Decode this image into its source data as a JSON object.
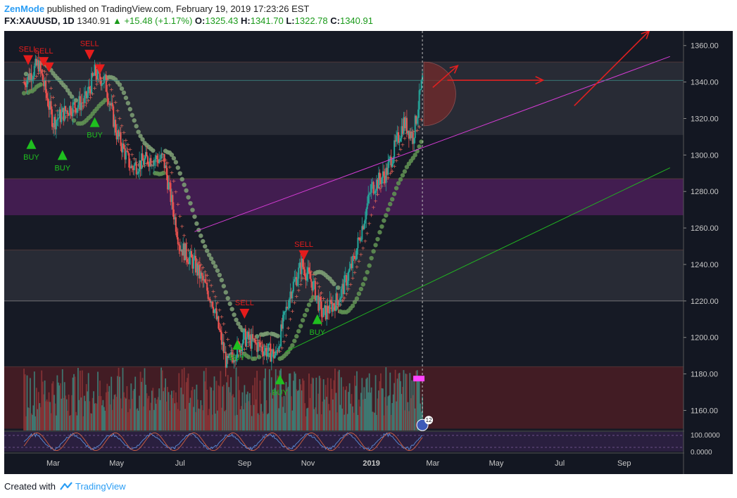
{
  "header": {
    "author": "ZenMode",
    "published_text": "published on TradingView.com, February 19, 2019 17:23:26 EST",
    "symbol": "FX:XAUUSD, 1D",
    "last": "1340.91",
    "change": "+15.48 (+1.17%)",
    "o_label": "O:",
    "o_value": "1325.43",
    "h_label": "H:",
    "h_value": "1341.70",
    "l_label": "L:",
    "l_value": "1322.78",
    "c_label": "C:",
    "c_value": "1340.91"
  },
  "footer": {
    "created_with": "Created with",
    "brand": "TradingView"
  },
  "colors": {
    "background": "#131722",
    "zone_gray": "#2c2f38",
    "zone_purple": "#4a1e58",
    "zone_red": "#4a1d24",
    "up_candle": "#26a69a",
    "down_candle": "#ef5350",
    "sma_green": "#5e8f52",
    "sma_red": "#ef6a5a",
    "trend_magenta": "#d63cd6",
    "trend_green": "#21b521",
    "buy": "#1fbf1f",
    "sell": "#e51c1c"
  },
  "chart_data": {
    "type": "candlestick",
    "symbol": "FX:XAUUSD",
    "interval": "1D",
    "xlabel": "",
    "ylabel": "",
    "x_ticks": [
      "Mar",
      "May",
      "Jul",
      "Sep",
      "Nov",
      "2019",
      "Mar",
      "May",
      "Jul",
      "Sep"
    ],
    "x_tick_dates": [
      "2018-03",
      "2018-05",
      "2018-07",
      "2018-09",
      "2018-11",
      "2019-01",
      "2019-03",
      "2019-05",
      "2019-07",
      "2019-09"
    ],
    "y_ticks": [
      "1360.00",
      "1340.00",
      "1320.00",
      "1300.00",
      "1280.00",
      "1260.00",
      "1240.00",
      "1220.00",
      "1200.00",
      "1180.00",
      "1160.00"
    ],
    "ylim": [
      1149,
      1368
    ],
    "grid": false,
    "price_path": [
      [
        "2018-02-01",
        1340
      ],
      [
        "2018-02-15",
        1350
      ],
      [
        "2018-03-01",
        1318
      ],
      [
        "2018-03-15",
        1325
      ],
      [
        "2018-04-01",
        1330
      ],
      [
        "2018-04-10",
        1345
      ],
      [
        "2018-04-20",
        1340
      ],
      [
        "2018-05-01",
        1312
      ],
      [
        "2018-05-15",
        1293
      ],
      [
        "2018-06-01",
        1298
      ],
      [
        "2018-06-15",
        1298
      ],
      [
        "2018-07-01",
        1250
      ],
      [
        "2018-07-15",
        1240
      ],
      [
        "2018-08-01",
        1220
      ],
      [
        "2018-08-15",
        1185
      ],
      [
        "2018-09-01",
        1200
      ],
      [
        "2018-09-15",
        1195
      ],
      [
        "2018-10-01",
        1190
      ],
      [
        "2018-10-15",
        1225
      ],
      [
        "2018-10-26",
        1240
      ],
      [
        "2018-11-05",
        1230
      ],
      [
        "2018-11-15",
        1212
      ],
      [
        "2018-12-01",
        1222
      ],
      [
        "2018-12-15",
        1242
      ],
      [
        "2019-01-01",
        1282
      ],
      [
        "2019-01-15",
        1290
      ],
      [
        "2019-02-01",
        1318
      ],
      [
        "2019-02-10",
        1310
      ],
      [
        "2019-02-19",
        1340.91
      ]
    ],
    "signals": [
      {
        "type": "sell",
        "label": "SELL",
        "date": "2018-02-05",
        "price": 1352
      },
      {
        "type": "sell",
        "label": "SELL",
        "date": "2018-02-20",
        "price": 1351
      },
      {
        "type": "sell",
        "label": "SELL",
        "date": "2018-04-05",
        "price": 1355
      },
      {
        "type": "sell",
        "label": "",
        "date": "2018-04-15",
        "price": 1347
      },
      {
        "type": "sell",
        "label": "",
        "date": "2018-02-25",
        "price": 1348
      },
      {
        "type": "sell",
        "label": "SELL",
        "date": "2018-09-01",
        "price": 1213
      },
      {
        "type": "sell",
        "label": "SELL",
        "date": "2018-10-28",
        "price": 1245
      },
      {
        "type": "buy",
        "label": "BUY",
        "date": "2018-02-08",
        "price": 1306
      },
      {
        "type": "buy",
        "label": "BUY",
        "date": "2018-03-10",
        "price": 1300
      },
      {
        "type": "buy",
        "label": "BUY",
        "date": "2018-04-10",
        "price": 1318
      },
      {
        "type": "buy",
        "label": "BUY",
        "date": "2018-08-25",
        "price": 1196
      },
      {
        "type": "buy",
        "label": "BUY",
        "date": "2018-10-05",
        "price": 1177
      },
      {
        "type": "buy",
        "label": "BUY",
        "date": "2018-11-10",
        "price": 1210
      }
    ],
    "zones": [
      {
        "name": "gray",
        "from": 1311,
        "to": 1351
      },
      {
        "name": "purple",
        "from": 1267,
        "to": 1287
      },
      {
        "name": "gray",
        "from": 1220,
        "to": 1248
      },
      {
        "name": "red",
        "from": 1150,
        "to": 1184
      }
    ],
    "trendlines": [
      {
        "color": "magenta",
        "from": [
          "2018-07-15",
          1258
        ],
        "to": [
          "2019-10-15",
          1354
        ]
      },
      {
        "color": "green",
        "from": [
          "2018-10-10",
          1192
        ],
        "to": [
          "2019-10-15",
          1293
        ]
      }
    ],
    "projection_arrows": [
      {
        "from": [
          "2019-03-01",
          1337
        ],
        "to": [
          "2019-03-25",
          1349
        ]
      },
      {
        "from": [
          "2019-03-15",
          1341
        ],
        "to": [
          "2019-06-15",
          1341
        ]
      },
      {
        "from": [
          "2019-07-15",
          1327
        ],
        "to": [
          "2019-09-25",
          1368
        ]
      }
    ],
    "volume_zone": [
      1150,
      1184
    ],
    "oscillator_ticks": [
      "100.0000",
      "0.0000"
    ],
    "event_badge": "12"
  }
}
